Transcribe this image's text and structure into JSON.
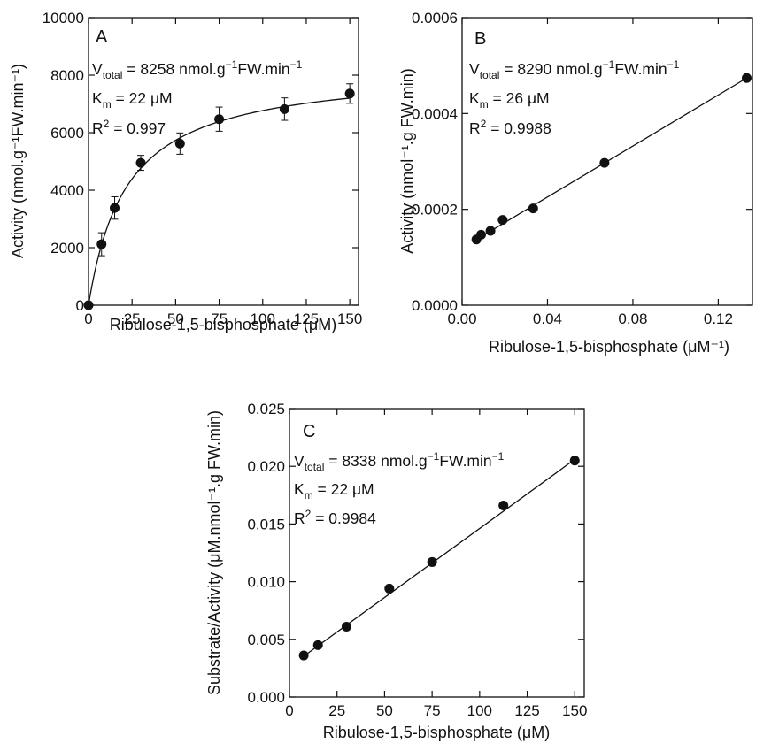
{
  "colors": {
    "ink": "#111111",
    "background": "#ffffff"
  },
  "chart_data": [
    {
      "panel_label": "A",
      "type": "scatter",
      "xlabel": "Ribulose-1,5-bisphosphate (μM)",
      "ylabel": "Activity (nmol.g⁻¹FW.min⁻¹)",
      "xlim": [
        0,
        155
      ],
      "ylim": [
        0,
        10000
      ],
      "x_ticks": [
        "0",
        "25",
        "50",
        "75",
        "100",
        "125",
        "150"
      ],
      "y_ticks": [
        "0",
        "2000",
        "4000",
        "6000",
        "8000",
        "10000"
      ],
      "points": [
        {
          "x": 0,
          "y": 0,
          "err": 0
        },
        {
          "x": 7.5,
          "y": 2120,
          "err": 400
        },
        {
          "x": 15,
          "y": 3380,
          "err": 390
        },
        {
          "x": 30,
          "y": 4950,
          "err": 260
        },
        {
          "x": 52.5,
          "y": 5620,
          "err": 370
        },
        {
          "x": 75,
          "y": 6470,
          "err": 420
        },
        {
          "x": 112.5,
          "y": 6820,
          "err": 390
        },
        {
          "x": 150,
          "y": 7360,
          "err": 340
        }
      ],
      "fit": {
        "model": "michaelis-menten",
        "vmax": 8258,
        "km": 22
      },
      "stats": {
        "v_name": "V",
        "v_sub": "total",
        "v_rest": " = 8258 nmol.g",
        "v_sup": "−1",
        "v_rest2": "FW.min",
        "v_sup2": "−1",
        "k_name": "K",
        "k_sub": "m",
        "k_rest": " = 22 μM",
        "r_name": "R",
        "r_sup": "2",
        "r_rest": " = 0.997"
      }
    },
    {
      "panel_label": "B",
      "type": "scatter",
      "xlabel": "Ribulose-1,5-bisphosphate (μM⁻¹)",
      "ylabel": "Activity (nmol⁻¹.g FW.min)",
      "xlim": [
        0,
        0.136
      ],
      "ylim": [
        0,
        0.0006
      ],
      "x_ticks": [
        "0.00",
        "0.04",
        "0.08",
        "0.12"
      ],
      "y_ticks": [
        "0.0000",
        "0.0002",
        "0.0004",
        "0.0006"
      ],
      "points": [
        {
          "x": 0.0067,
          "y": 0.000137
        },
        {
          "x": 0.0089,
          "y": 0.000147
        },
        {
          "x": 0.0133,
          "y": 0.000155
        },
        {
          "x": 0.019,
          "y": 0.000178
        },
        {
          "x": 0.0333,
          "y": 0.000202
        },
        {
          "x": 0.0667,
          "y": 0.000297
        },
        {
          "x": 0.1333,
          "y": 0.000474
        }
      ],
      "fit": {
        "model": "linear",
        "x0": 0.0067,
        "y0": 0.000137,
        "x1": 0.1333,
        "y1": 0.000474
      },
      "stats": {
        "v_name": "V",
        "v_sub": "total",
        "v_rest": " = 8290 nmol.g",
        "v_sup": "−1",
        "v_rest2": "FW.min",
        "v_sup2": "−1",
        "k_name": "K",
        "k_sub": "m",
        "k_rest": " = 26 μM",
        "r_name": "R",
        "r_sup": "2",
        "r_rest": " = 0.9988"
      }
    },
    {
      "panel_label": "C",
      "type": "scatter",
      "xlabel": "Ribulose-1,5-bisphosphate (μM)",
      "ylabel": "Substrate/Activity (μM.nmol⁻¹.g FW.min)",
      "xlim": [
        0,
        155
      ],
      "ylim": [
        0,
        0.025
      ],
      "x_ticks": [
        "0",
        "25",
        "50",
        "75",
        "100",
        "125",
        "150"
      ],
      "y_ticks": [
        "0.000",
        "0.005",
        "0.010",
        "0.015",
        "0.020",
        "0.025"
      ],
      "points": [
        {
          "x": 7.5,
          "y": 0.0036
        },
        {
          "x": 15,
          "y": 0.0045
        },
        {
          "x": 30,
          "y": 0.0061
        },
        {
          "x": 52.5,
          "y": 0.0094
        },
        {
          "x": 75,
          "y": 0.0117
        },
        {
          "x": 112.5,
          "y": 0.0166
        },
        {
          "x": 150,
          "y": 0.0205
        }
      ],
      "fit": {
        "model": "linear",
        "x0": 7.5,
        "y0": 0.00354,
        "x1": 150,
        "y1": 0.0206
      },
      "stats": {
        "v_name": "V",
        "v_sub": "total",
        "v_rest": " = 8338 nmol.g",
        "v_sup": "−1",
        "v_rest2": "FW.min",
        "v_sup2": "−1",
        "k_name": "K",
        "k_sub": "m",
        "k_rest": " = 22 μM",
        "r_name": "R",
        "r_sup": "2",
        "r_rest": " = 0.9984"
      }
    }
  ]
}
